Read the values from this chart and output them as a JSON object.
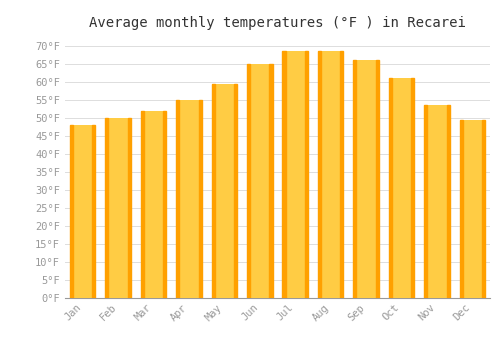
{
  "months": [
    "Jan",
    "Feb",
    "Mar",
    "Apr",
    "May",
    "Jun",
    "Jul",
    "Aug",
    "Sep",
    "Oct",
    "Nov",
    "Dec"
  ],
  "values": [
    48,
    50,
    52,
    55,
    59.5,
    65,
    68.5,
    68.5,
    66,
    61,
    53.5,
    49.5
  ],
  "bar_color_light": "#FFCC44",
  "bar_color_dark": "#FFA000",
  "background_color": "#ffffff",
  "grid_color": "#dddddd",
  "title": "Average monthly temperatures (°F ) in Recarei",
  "title_fontsize": 10,
  "ylabel_ticks": [
    "0°F",
    "5°F",
    "10°F",
    "15°F",
    "20°F",
    "25°F",
    "30°F",
    "35°F",
    "40°F",
    "45°F",
    "50°F",
    "55°F",
    "60°F",
    "65°F",
    "70°F"
  ],
  "ytick_values": [
    0,
    5,
    10,
    15,
    20,
    25,
    30,
    35,
    40,
    45,
    50,
    55,
    60,
    65,
    70
  ],
  "ylim": [
    0,
    73
  ],
  "tick_fontsize": 7.5,
  "tick_color": "#999999",
  "font_family": "monospace"
}
